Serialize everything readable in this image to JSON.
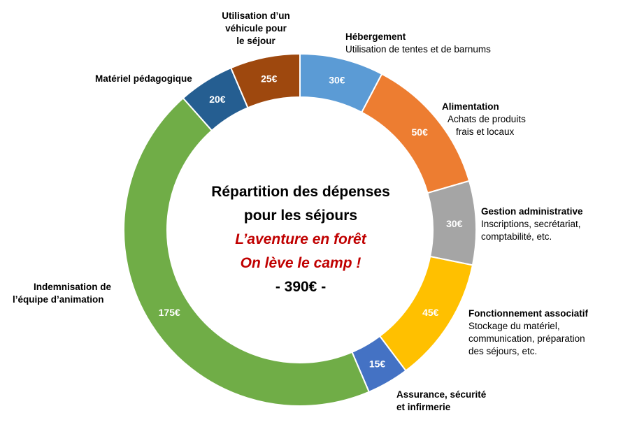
{
  "chart_data": {
    "type": "pie",
    "title": "Répartition des dépenses pour les séjours",
    "title_lines": [
      "Répartition des dépenses",
      "pour les séjours"
    ],
    "subtitle_lines": [
      "L’aventure en forêt",
      "On lève le camp !"
    ],
    "total_label": "- 390€ -",
    "total": 390,
    "currency": "€",
    "start_angle_deg": 0,
    "direction": "clockwise",
    "categories": [
      "Hébergement",
      "Alimentation",
      "Gestion administrative",
      "Fonctionnement associatif",
      "Assurance, sécurité et infirmerie",
      "Indemnisation de l’équipe d’animation",
      "Matériel pédagogique",
      "Utilisation d’un véhicule pour le séjour"
    ],
    "values": [
      30,
      50,
      30,
      45,
      15,
      175,
      20,
      25
    ],
    "value_labels": [
      "30€",
      "50€",
      "30€",
      "45€",
      "15€",
      "175€",
      "20€",
      "25€"
    ],
    "colors": [
      "#5b9bd5",
      "#ed7d31",
      "#a5a5a5",
      "#ffc000",
      "#4472c4",
      "#70ad47",
      "#255e91",
      "#9e480e"
    ],
    "legend": [
      {
        "title": "Hébergement",
        "lines": [
          "Utilisation de tentes et de barnums"
        ]
      },
      {
        "title": "Alimentation",
        "lines": [
          "Achats de produits",
          "frais et locaux"
        ]
      },
      {
        "title": "Gestion administrative",
        "lines": [
          "Inscriptions, secrétariat,",
          "comptabilité, etc."
        ]
      },
      {
        "title": "Fonctionnement associatif",
        "lines": [
          "Stockage du matériel,",
          "communication, préparation",
          "des séjours, etc."
        ]
      },
      {
        "title_lines": [
          "Assurance, sécurité",
          "et infirmerie"
        ]
      },
      {
        "title_lines": [
          "Indemnisation de",
          "l’équipe d’animation"
        ]
      },
      {
        "title": "Matériel pédagogique"
      },
      {
        "title_lines": [
          "Utilisation d’un",
          "véhicule pour",
          "le séjour"
        ]
      }
    ]
  }
}
